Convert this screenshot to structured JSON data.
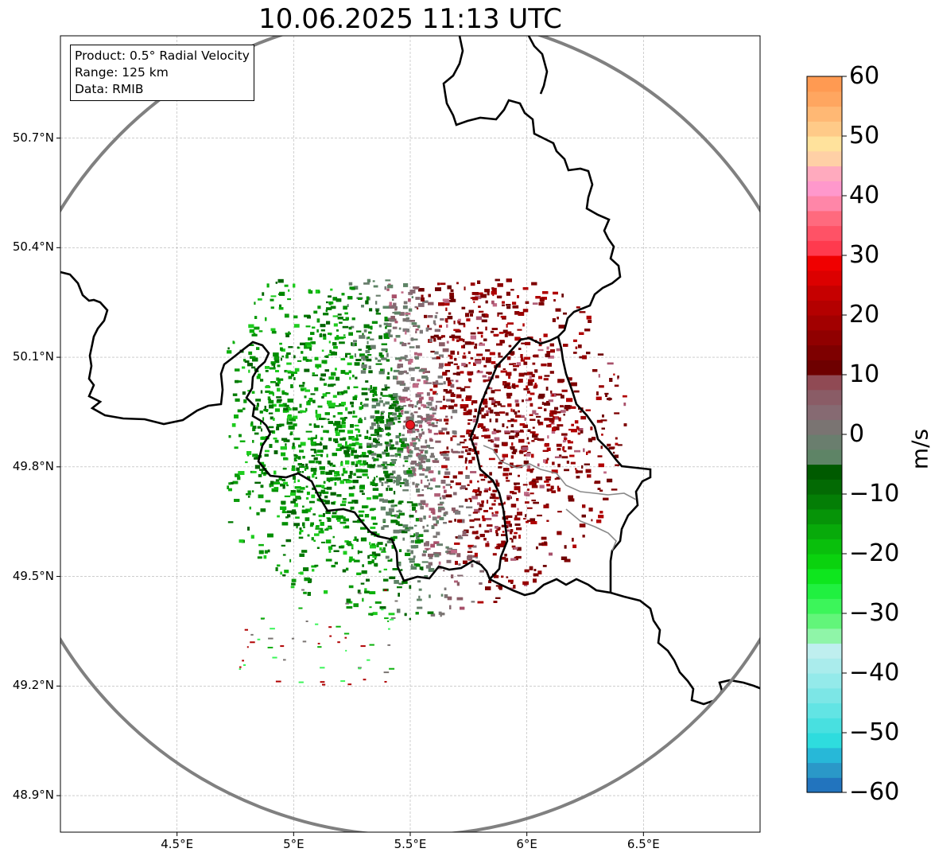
{
  "title": "10.06.2025 11:13 UTC",
  "info_box": {
    "product": "Product: 0.5° Radial Velocity",
    "range": "Range: 125 km",
    "data": "Data: RMIB"
  },
  "map": {
    "lon_range": [
      4.0,
      7.0
    ],
    "lat_range": [
      48.8,
      50.98
    ],
    "radar_site": {
      "lon": 5.5,
      "lat": 49.915
    },
    "range_ring_km": 125,
    "x_ticks": [
      {
        "lon": 4.5,
        "label": "4.5°E"
      },
      {
        "lon": 5.0,
        "label": "5°E"
      },
      {
        "lon": 5.5,
        "label": "5.5°E"
      },
      {
        "lon": 6.0,
        "label": "6°E"
      },
      {
        "lon": 6.5,
        "label": "6.5°E"
      }
    ],
    "y_ticks": [
      {
        "lat": 50.7,
        "label": "50.7°N"
      },
      {
        "lat": 50.4,
        "label": "50.4°N"
      },
      {
        "lat": 50.1,
        "label": "50.1°N"
      },
      {
        "lat": 49.8,
        "label": "49.8°N"
      },
      {
        "lat": 49.5,
        "label": "49.5°N"
      },
      {
        "lat": 49.2,
        "label": "49.2°N"
      },
      {
        "lat": 48.9,
        "label": "48.9°N"
      }
    ],
    "grid": true,
    "echo_pattern": "Radial velocity field around the radar: green (approaching) to the west and south-west, dark red (receding) to the east and north-east, grey near zero along the north-south line through the radar."
  },
  "colorbar": {
    "label": "m/s",
    "min": -60,
    "max": 60,
    "ticks": [
      {
        "value": 60,
        "label": "60"
      },
      {
        "value": 50,
        "label": "50"
      },
      {
        "value": 40,
        "label": "40"
      },
      {
        "value": 30,
        "label": "30"
      },
      {
        "value": 20,
        "label": "20"
      },
      {
        "value": 10,
        "label": "10"
      },
      {
        "value": 0,
        "label": "0"
      },
      {
        "value": -10,
        "label": "−10"
      },
      {
        "value": -20,
        "label": "−20"
      },
      {
        "value": -30,
        "label": "−30"
      },
      {
        "value": -40,
        "label": "−40"
      },
      {
        "value": -50,
        "label": "−50"
      },
      {
        "value": -60,
        "label": "−60"
      }
    ],
    "colors_bottom_to_top": [
      "#2274be",
      "#2a98c8",
      "#27b8d8",
      "#2edcde",
      "#48e0e0",
      "#62e4e4",
      "#7ce6e6",
      "#94eaea",
      "#aaecec",
      "#bfefef",
      "#8ff5a8",
      "#62f57a",
      "#3cf55a",
      "#20f040",
      "#0ee61e",
      "#0ad20e",
      "#09bf0c",
      "#08aa0a",
      "#069408",
      "#047e06",
      "#036a04",
      "#005a00",
      "#5e8466",
      "#6a7e6e",
      "#7a7472",
      "#866a72",
      "#8a5c66",
      "#904a54",
      "#6e0000",
      "#7e0000",
      "#900000",
      "#a20000",
      "#b40000",
      "#c60000",
      "#dc0000",
      "#f00000",
      "#ff3a4e",
      "#ff5266",
      "#ff6a7e",
      "#ff86a8",
      "#ff98cc",
      "#ffaabe",
      "#ffd0a6",
      "#ffe29c",
      "#ffca88",
      "#ffb874",
      "#ffa660",
      "#ff9a52"
    ]
  }
}
